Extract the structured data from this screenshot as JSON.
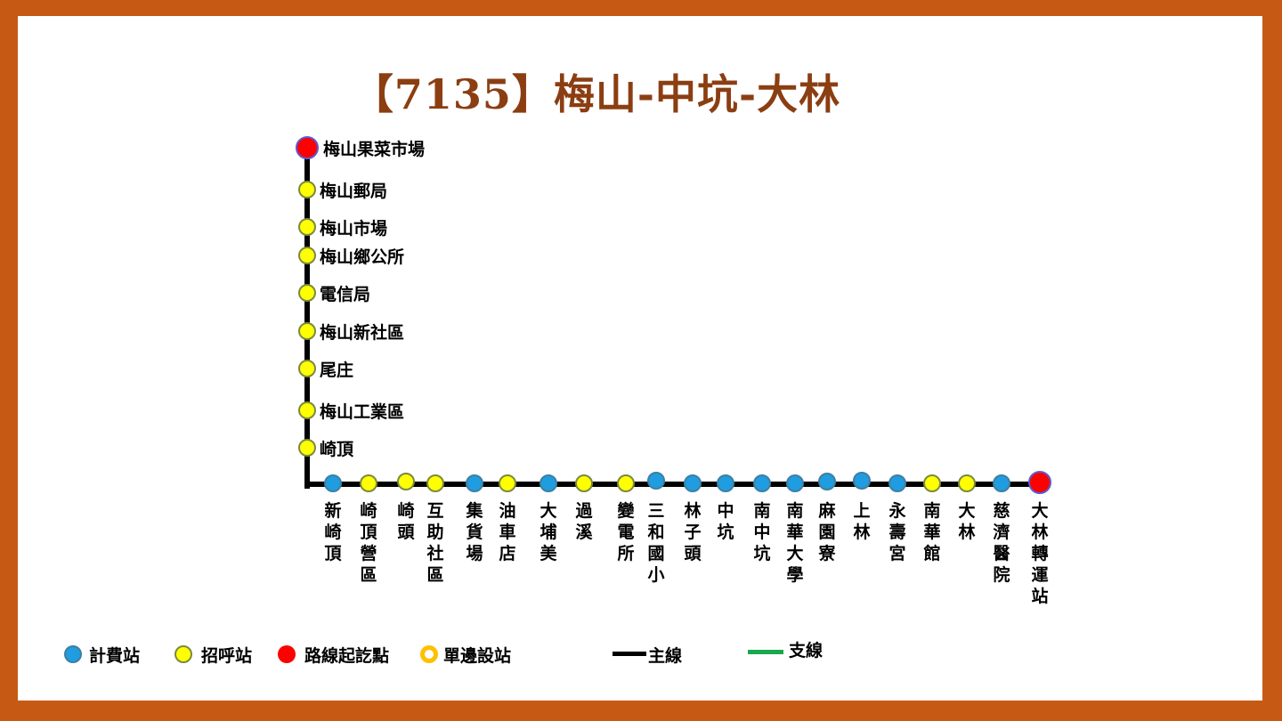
{
  "title": "【7135】梅山-中坑-大林",
  "colors": {
    "frame": "#c65a14",
    "title": "#8b3e12",
    "fare_stop": "#1f9de0",
    "call_stop": "#ffff00",
    "terminal": "#ff0000",
    "one_side_stop": "#ffc000",
    "main_line": "#000000",
    "branch_line": "#1aa84f"
  },
  "vertical_stops": [
    {
      "name": "梅山果菜市場",
      "type": "end"
    },
    {
      "name": "梅山郵局",
      "type": "call"
    },
    {
      "name": "梅山市場",
      "type": "call"
    },
    {
      "name": "梅山鄉公所",
      "type": "call"
    },
    {
      "name": "電信局",
      "type": "call"
    },
    {
      "name": "梅山新社區",
      "type": "call"
    },
    {
      "name": "尾庄",
      "type": "call"
    },
    {
      "name": "梅山工業區",
      "type": "call"
    },
    {
      "name": "崎頂",
      "type": "call"
    }
  ],
  "horizontal_stops": [
    {
      "name": "新崎頂",
      "type": "fare"
    },
    {
      "name": "崎頂營區",
      "type": "call"
    },
    {
      "name": "崎頭",
      "type": "call"
    },
    {
      "name": "互助社區",
      "type": "call"
    },
    {
      "name": "集貨場",
      "type": "fare"
    },
    {
      "name": "油車店",
      "type": "call"
    },
    {
      "name": "大埔美",
      "type": "fare"
    },
    {
      "name": "過溪",
      "type": "call"
    },
    {
      "name": "變電所",
      "type": "call"
    },
    {
      "name": "三和國小",
      "type": "fare"
    },
    {
      "name": "林子頭",
      "type": "fare"
    },
    {
      "name": "中坑",
      "type": "fare"
    },
    {
      "name": "南中坑",
      "type": "fare"
    },
    {
      "name": "南華大學",
      "type": "fare"
    },
    {
      "name": "麻園寮",
      "type": "fare"
    },
    {
      "name": "上林",
      "type": "fare"
    },
    {
      "name": "永壽宮",
      "type": "fare"
    },
    {
      "name": "南華館",
      "type": "call"
    },
    {
      "name": "大林",
      "type": "call"
    },
    {
      "name": "慈濟醫院",
      "type": "fare"
    },
    {
      "name": "大林轉運站",
      "type": "end"
    }
  ],
  "legend": {
    "fare_stop": "計費站",
    "call_stop": "招呼站",
    "terminal": "路線起訖點",
    "one_side_stop": "單邊設站",
    "main_line": "主線",
    "branch_line": "支線"
  }
}
